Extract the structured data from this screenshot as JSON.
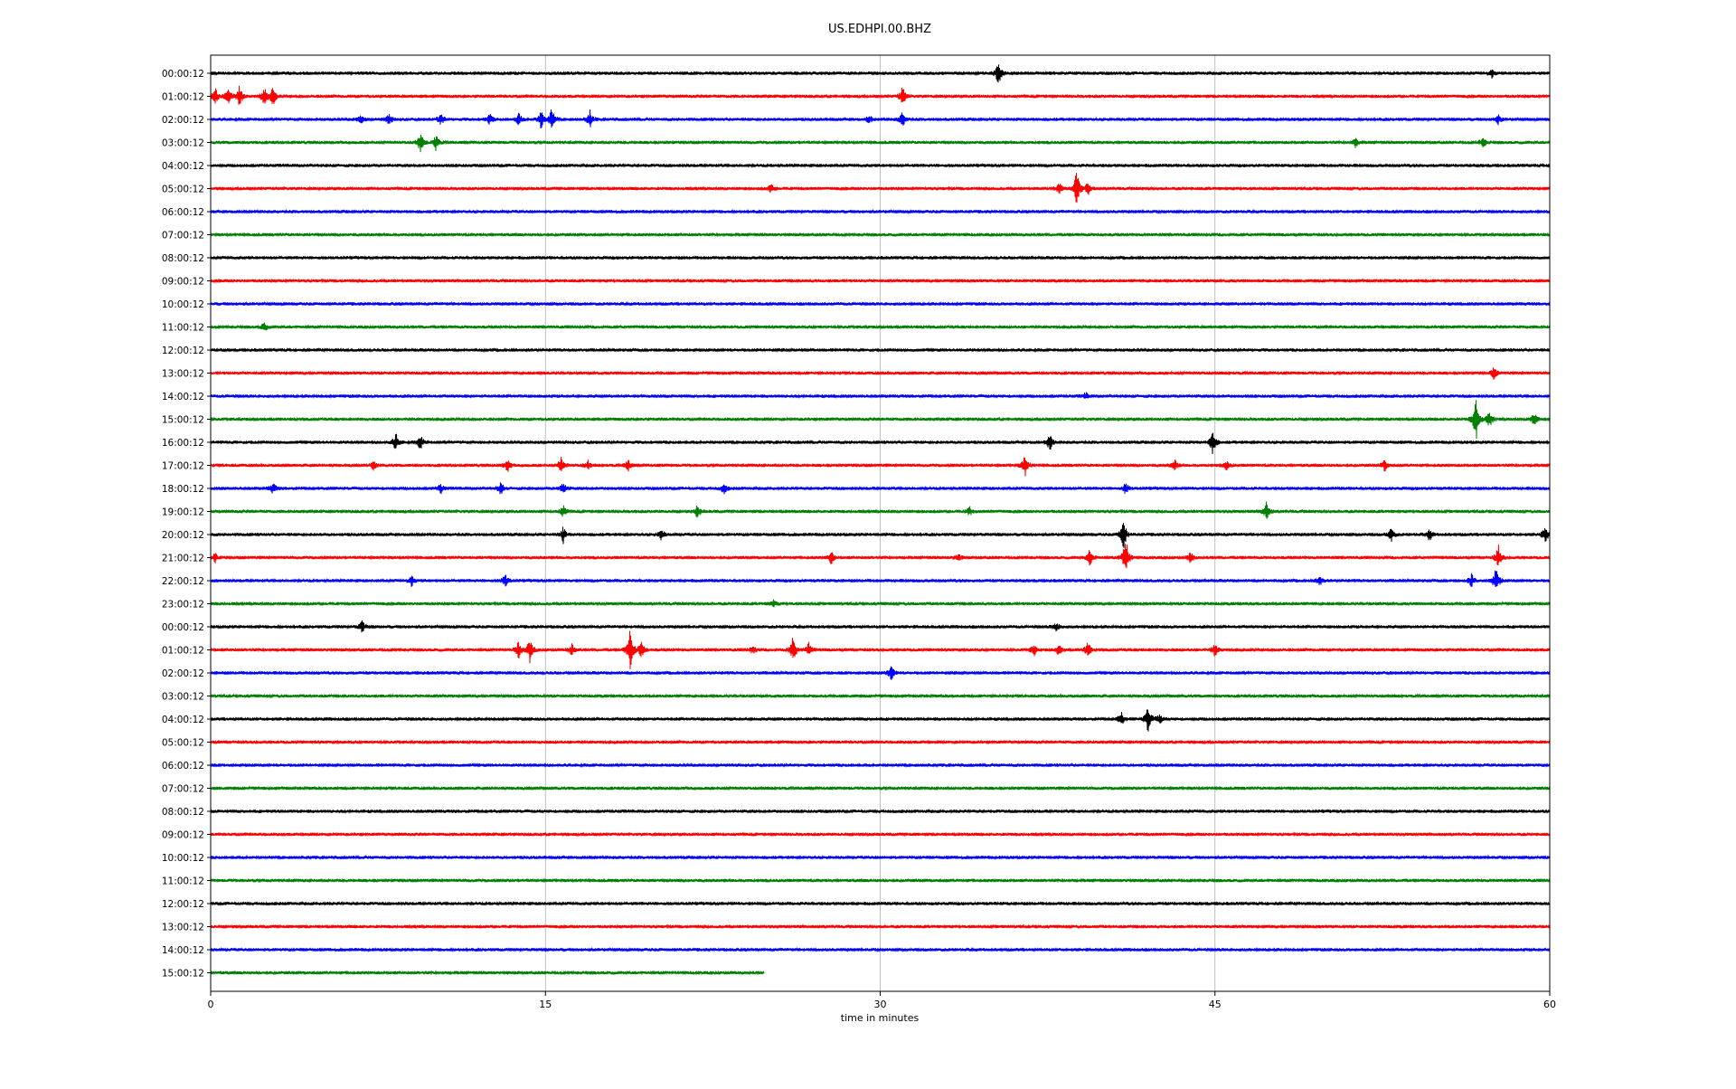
{
  "chart_data": {
    "type": "line",
    "title": "US.EDHPI.00.BHZ",
    "xlabel": "time in minutes",
    "ylabel": "",
    "xlim": [
      0,
      60
    ],
    "x_ticks": [
      0,
      15,
      30,
      45,
      60
    ],
    "x_tick_labels": [
      "0",
      "15",
      "30",
      "45",
      "60"
    ],
    "grid": "vertical",
    "row_labels": [
      "00:00:12",
      "01:00:12",
      "02:00:12",
      "03:00:12",
      "04:00:12",
      "05:00:12",
      "06:00:12",
      "07:00:12",
      "08:00:12",
      "09:00:12",
      "10:00:12",
      "11:00:12",
      "12:00:12",
      "13:00:12",
      "14:00:12",
      "15:00:12",
      "16:00:12",
      "17:00:12",
      "18:00:12",
      "19:00:12",
      "20:00:12",
      "21:00:12",
      "22:00:12",
      "23:00:12",
      "00:00:12",
      "01:00:12",
      "02:00:12",
      "03:00:12",
      "04:00:12",
      "05:00:12",
      "06:00:12",
      "07:00:12",
      "08:00:12",
      "09:00:12",
      "10:00:12",
      "11:00:12",
      "12:00:12",
      "13:00:12",
      "14:00:12",
      "15:00:12"
    ],
    "color_cycle": [
      "#000000",
      "#ff0000",
      "#0000ff",
      "#008000"
    ],
    "last_row_end_minute": 24.8,
    "events": [
      {
        "row": 0,
        "minute": 35.3,
        "amplitude": 1.1
      },
      {
        "row": 0,
        "minute": 57.4,
        "amplitude": 0.4
      },
      {
        "row": 1,
        "minute": 0.2,
        "amplitude": 0.8
      },
      {
        "row": 1,
        "minute": 0.8,
        "amplitude": 0.9
      },
      {
        "row": 1,
        "minute": 1.3,
        "amplitude": 1.0
      },
      {
        "row": 1,
        "minute": 2.4,
        "amplitude": 0.8
      },
      {
        "row": 1,
        "minute": 2.8,
        "amplitude": 0.9
      },
      {
        "row": 1,
        "minute": 31.0,
        "amplitude": 1.0
      },
      {
        "row": 2,
        "minute": 6.7,
        "amplitude": 0.5
      },
      {
        "row": 2,
        "minute": 8.0,
        "amplitude": 0.5
      },
      {
        "row": 2,
        "minute": 10.3,
        "amplitude": 0.6
      },
      {
        "row": 2,
        "minute": 12.5,
        "amplitude": 0.5
      },
      {
        "row": 2,
        "minute": 13.8,
        "amplitude": 0.6
      },
      {
        "row": 2,
        "minute": 14.8,
        "amplitude": 0.9
      },
      {
        "row": 2,
        "minute": 15.3,
        "amplitude": 1.2
      },
      {
        "row": 2,
        "minute": 17.0,
        "amplitude": 0.8
      },
      {
        "row": 2,
        "minute": 29.5,
        "amplitude": 0.4
      },
      {
        "row": 2,
        "minute": 31.0,
        "amplitude": 0.7
      },
      {
        "row": 2,
        "minute": 57.7,
        "amplitude": 0.4
      },
      {
        "row": 3,
        "minute": 9.4,
        "amplitude": 0.9
      },
      {
        "row": 3,
        "minute": 10.1,
        "amplitude": 0.7
      },
      {
        "row": 3,
        "minute": 51.3,
        "amplitude": 0.4
      },
      {
        "row": 3,
        "minute": 57.0,
        "amplitude": 0.5
      },
      {
        "row": 5,
        "minute": 25.1,
        "amplitude": 0.4
      },
      {
        "row": 5,
        "minute": 38.0,
        "amplitude": 0.6
      },
      {
        "row": 5,
        "minute": 38.8,
        "amplitude": 1.8
      },
      {
        "row": 5,
        "minute": 39.3,
        "amplitude": 0.6
      },
      {
        "row": 11,
        "minute": 2.4,
        "amplitude": 0.4
      },
      {
        "row": 13,
        "minute": 57.5,
        "amplitude": 0.5
      },
      {
        "row": 14,
        "minute": 39.2,
        "amplitude": 0.3
      },
      {
        "row": 15,
        "minute": 56.7,
        "amplitude": 2.2
      },
      {
        "row": 15,
        "minute": 57.3,
        "amplitude": 0.8
      },
      {
        "row": 15,
        "minute": 59.3,
        "amplitude": 0.6
      },
      {
        "row": 16,
        "minute": 8.3,
        "amplitude": 0.8
      },
      {
        "row": 16,
        "minute": 9.4,
        "amplitude": 0.8
      },
      {
        "row": 16,
        "minute": 37.6,
        "amplitude": 0.8
      },
      {
        "row": 16,
        "minute": 44.9,
        "amplitude": 1.1
      },
      {
        "row": 17,
        "minute": 7.3,
        "amplitude": 0.4
      },
      {
        "row": 17,
        "minute": 13.3,
        "amplitude": 0.6
      },
      {
        "row": 17,
        "minute": 15.7,
        "amplitude": 0.8
      },
      {
        "row": 17,
        "minute": 16.9,
        "amplitude": 0.4
      },
      {
        "row": 17,
        "minute": 18.7,
        "amplitude": 0.5
      },
      {
        "row": 17,
        "minute": 36.5,
        "amplitude": 1.1
      },
      {
        "row": 17,
        "minute": 43.2,
        "amplitude": 0.5
      },
      {
        "row": 17,
        "minute": 45.5,
        "amplitude": 0.5
      },
      {
        "row": 17,
        "minute": 52.6,
        "amplitude": 0.5
      },
      {
        "row": 18,
        "minute": 2.8,
        "amplitude": 0.5
      },
      {
        "row": 18,
        "minute": 10.3,
        "amplitude": 0.5
      },
      {
        "row": 18,
        "minute": 13.0,
        "amplitude": 0.6
      },
      {
        "row": 18,
        "minute": 15.8,
        "amplitude": 0.5
      },
      {
        "row": 18,
        "minute": 23.0,
        "amplitude": 0.5
      },
      {
        "row": 18,
        "minute": 41.0,
        "amplitude": 0.5
      },
      {
        "row": 19,
        "minute": 15.8,
        "amplitude": 0.5
      },
      {
        "row": 19,
        "minute": 21.8,
        "amplitude": 0.6
      },
      {
        "row": 19,
        "minute": 34.0,
        "amplitude": 0.4
      },
      {
        "row": 19,
        "minute": 47.3,
        "amplitude": 0.8
      },
      {
        "row": 20,
        "minute": 15.8,
        "amplitude": 0.7
      },
      {
        "row": 20,
        "minute": 20.2,
        "amplitude": 0.5
      },
      {
        "row": 20,
        "minute": 40.9,
        "amplitude": 1.5
      },
      {
        "row": 20,
        "minute": 52.9,
        "amplitude": 0.6
      },
      {
        "row": 20,
        "minute": 54.6,
        "amplitude": 0.6
      },
      {
        "row": 20,
        "minute": 59.8,
        "amplitude": 0.8
      },
      {
        "row": 21,
        "minute": 0.2,
        "amplitude": 0.4
      },
      {
        "row": 21,
        "minute": 27.8,
        "amplitude": 0.6
      },
      {
        "row": 21,
        "minute": 33.5,
        "amplitude": 0.4
      },
      {
        "row": 21,
        "minute": 39.4,
        "amplitude": 0.8
      },
      {
        "row": 21,
        "minute": 41.0,
        "amplitude": 1.9
      },
      {
        "row": 21,
        "minute": 43.9,
        "amplitude": 0.5
      },
      {
        "row": 21,
        "minute": 57.7,
        "amplitude": 1.1
      },
      {
        "row": 22,
        "minute": 9.0,
        "amplitude": 0.5
      },
      {
        "row": 22,
        "minute": 13.2,
        "amplitude": 0.6
      },
      {
        "row": 22,
        "minute": 49.7,
        "amplitude": 0.4
      },
      {
        "row": 22,
        "minute": 56.5,
        "amplitude": 0.6
      },
      {
        "row": 22,
        "minute": 57.6,
        "amplitude": 1.4
      },
      {
        "row": 23,
        "minute": 25.2,
        "amplitude": 0.4
      },
      {
        "row": 24,
        "minute": 6.8,
        "amplitude": 0.6
      },
      {
        "row": 24,
        "minute": 37.9,
        "amplitude": 0.4
      },
      {
        "row": 25,
        "minute": 13.8,
        "amplitude": 0.8
      },
      {
        "row": 25,
        "minute": 14.3,
        "amplitude": 1.2
      },
      {
        "row": 25,
        "minute": 16.2,
        "amplitude": 0.6
      },
      {
        "row": 25,
        "minute": 18.8,
        "amplitude": 2.2
      },
      {
        "row": 25,
        "minute": 19.3,
        "amplitude": 0.8
      },
      {
        "row": 25,
        "minute": 24.3,
        "amplitude": 0.4
      },
      {
        "row": 25,
        "minute": 26.1,
        "amplitude": 1.3
      },
      {
        "row": 25,
        "minute": 26.8,
        "amplitude": 0.6
      },
      {
        "row": 25,
        "minute": 36.9,
        "amplitude": 0.6
      },
      {
        "row": 25,
        "minute": 38.0,
        "amplitude": 0.5
      },
      {
        "row": 25,
        "minute": 39.3,
        "amplitude": 0.7
      },
      {
        "row": 25,
        "minute": 45.0,
        "amplitude": 0.6
      },
      {
        "row": 26,
        "minute": 30.5,
        "amplitude": 0.7
      },
      {
        "row": 28,
        "minute": 40.8,
        "amplitude": 0.6
      },
      {
        "row": 28,
        "minute": 42.0,
        "amplitude": 1.3
      },
      {
        "row": 28,
        "minute": 42.5,
        "amplitude": 0.5
      }
    ]
  }
}
